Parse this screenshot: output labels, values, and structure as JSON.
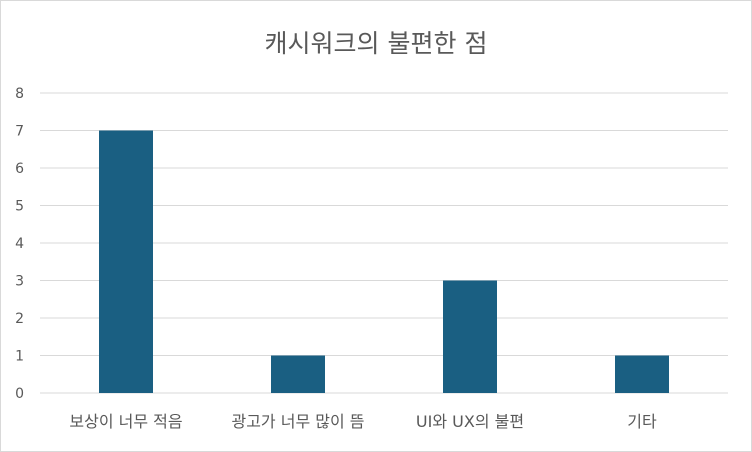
{
  "chart_data": {
    "type": "bar",
    "title": "캐시워크의 불편한 점",
    "categories": [
      "보상이 너무 적음",
      "광고가 너무 많이 뜸",
      "UI와 UX의 불편",
      "기타"
    ],
    "values": [
      7,
      1,
      3,
      1
    ],
    "yticks": [
      0,
      1,
      2,
      3,
      4,
      5,
      6,
      7,
      8
    ],
    "ylim": [
      0,
      8
    ],
    "grid": true,
    "legend": "none",
    "bar_color": "#1a5f82",
    "grid_color": "#d9d9d9"
  }
}
